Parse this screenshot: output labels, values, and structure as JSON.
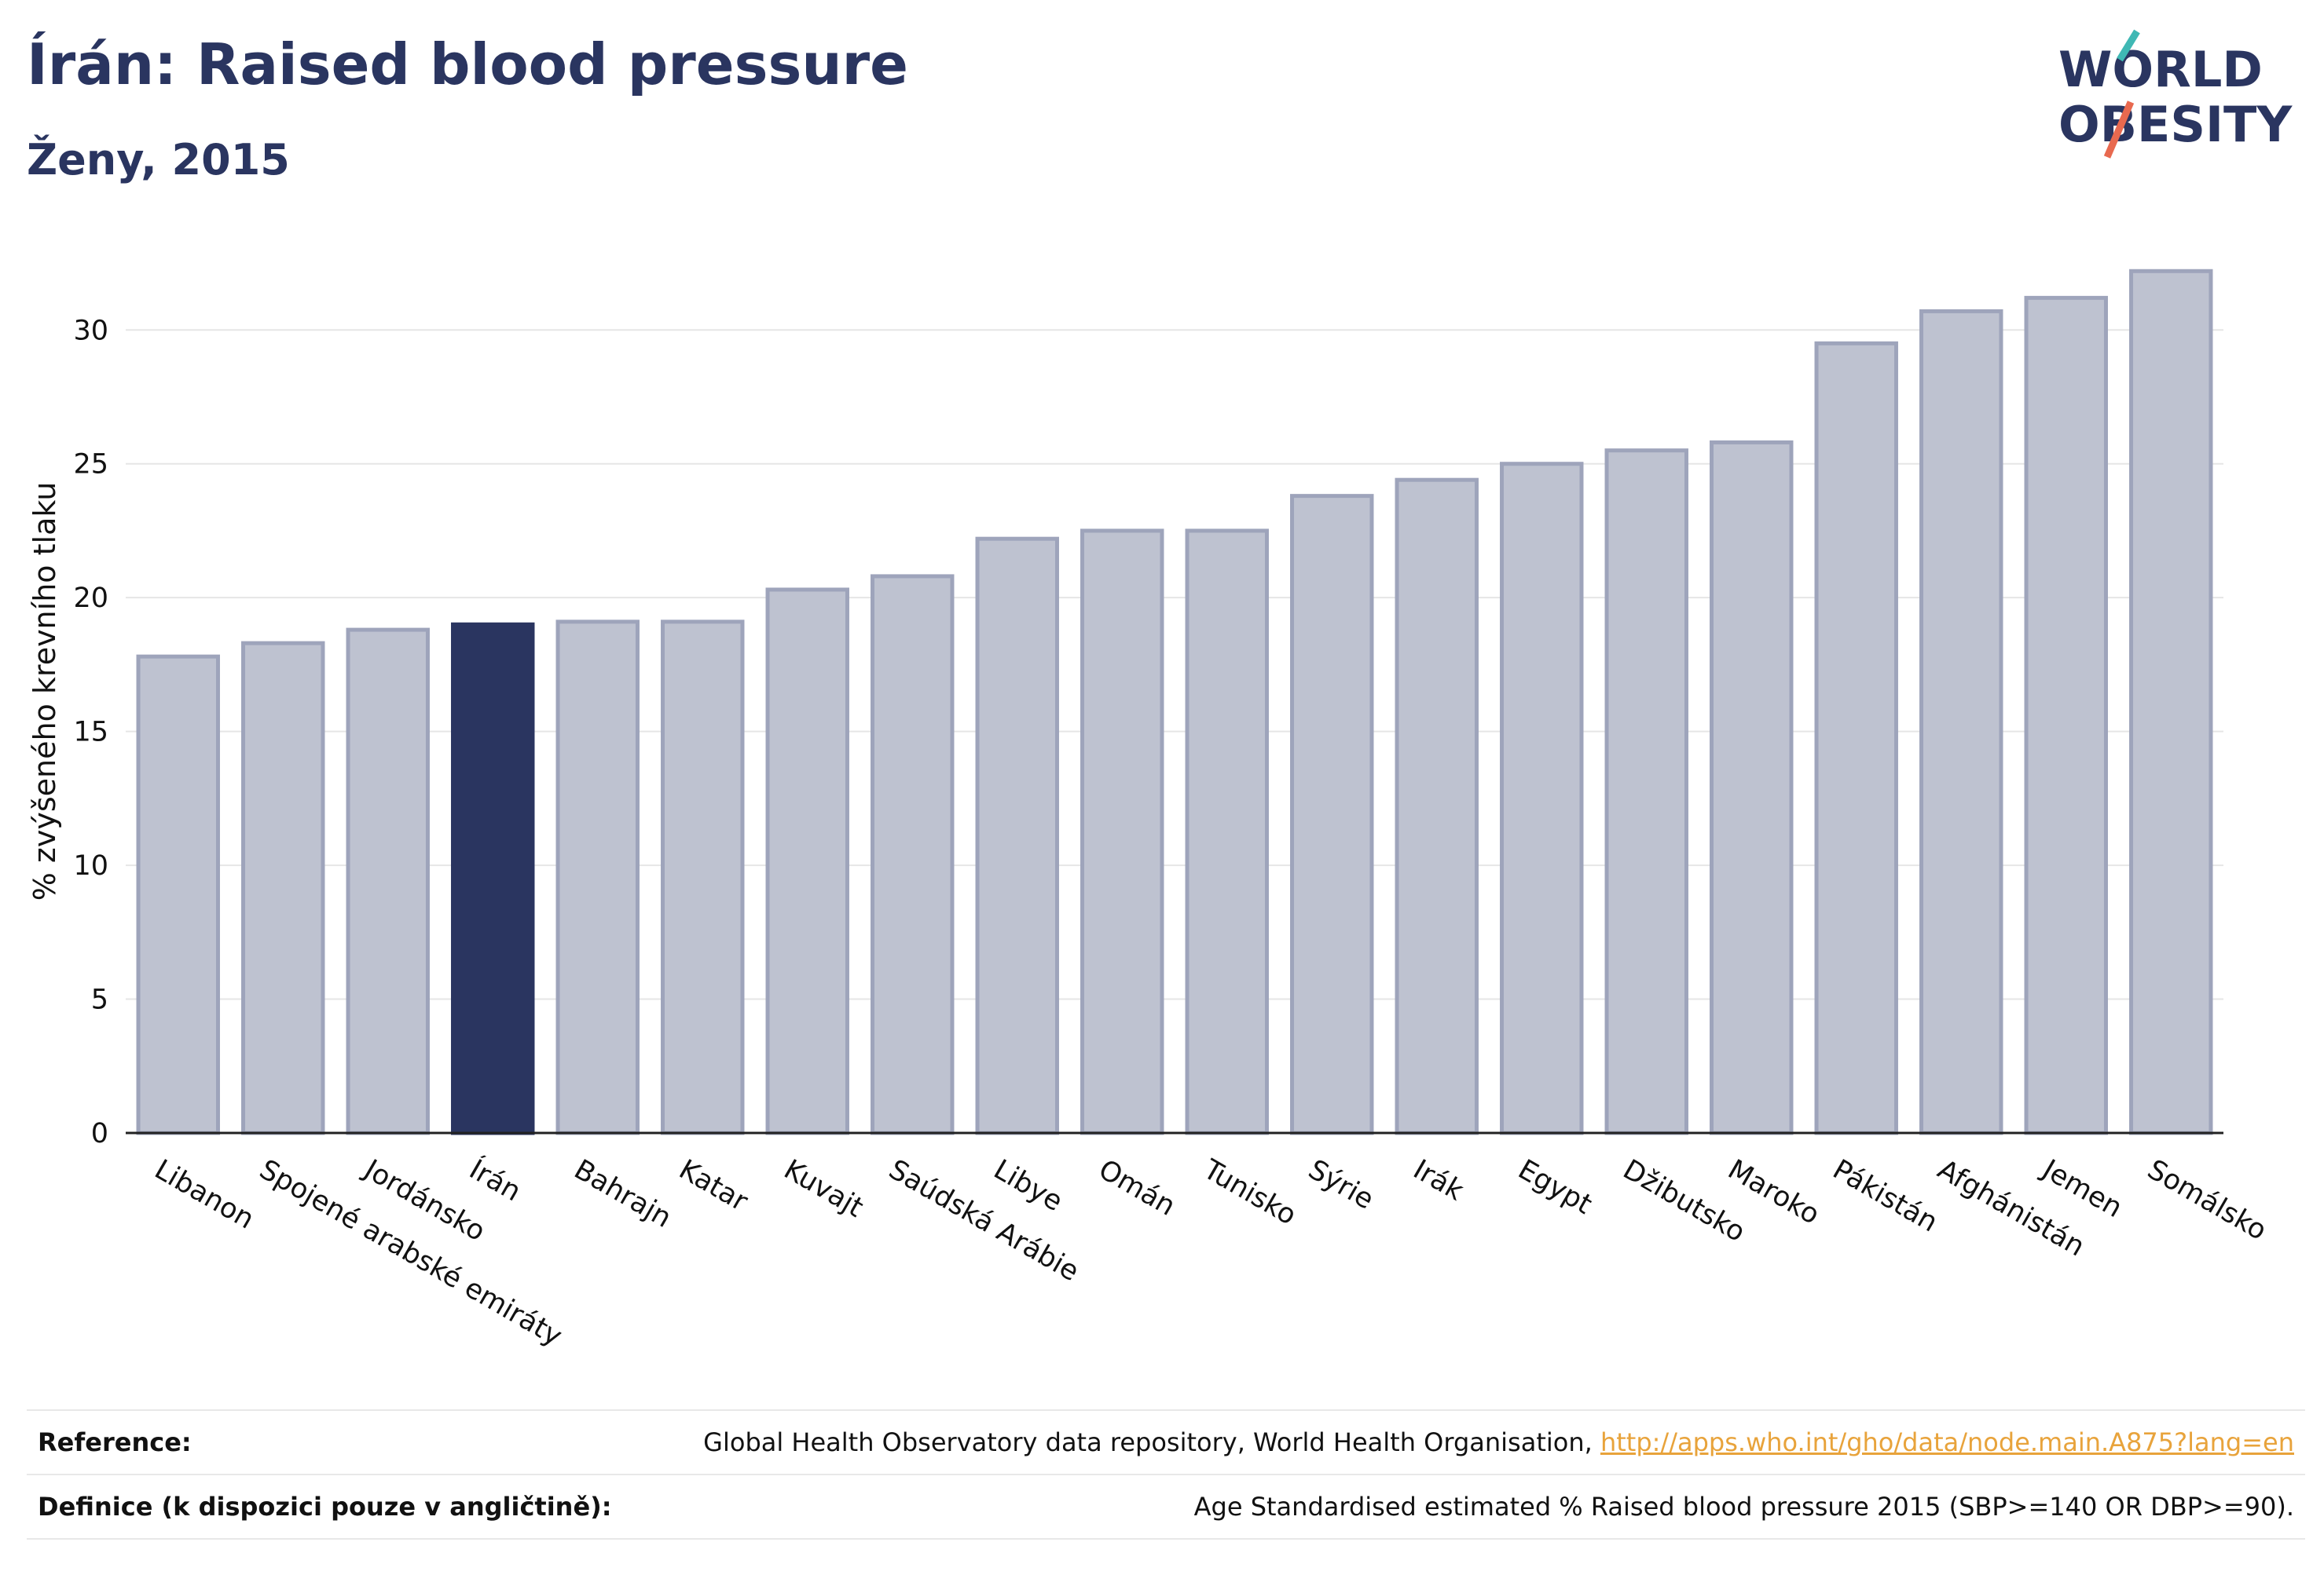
{
  "header": {
    "title": "Írán: Raised blood pressure",
    "subtitle": "Ženy, 2015"
  },
  "logo": {
    "line1": "WORLD",
    "line2": "OBESITY",
    "colors": [
      "#2a3560",
      "#e8694f",
      "#3fb8b4"
    ]
  },
  "chart_data": {
    "type": "bar",
    "ylabel": "% zvýšeného krevního tlaku",
    "ylim": [
      0,
      33
    ],
    "yticks": [
      0,
      5,
      10,
      15,
      20,
      25,
      30
    ],
    "grid": true,
    "highlight": "Írán",
    "colors": {
      "bar": "#bec2d0",
      "bar_edge": "#9ea4bb",
      "highlight": "#2a3560"
    },
    "categories": [
      "Libanon",
      "Spojené arabské emiráty",
      "Jordánsko",
      "Írán",
      "Bahrajn",
      "Katar",
      "Kuvajt",
      "Saúdská Arábie",
      "Libye",
      "Omán",
      "Tunisko",
      "Sýrie",
      "Irák",
      "Egypt",
      "Džibutsko",
      "Maroko",
      "Pákistán",
      "Afghánistán",
      "Jemen",
      "Somálsko"
    ],
    "values": [
      17.8,
      18.3,
      18.8,
      19.0,
      19.1,
      19.1,
      20.3,
      20.8,
      22.2,
      22.5,
      22.5,
      23.8,
      24.4,
      25.0,
      25.5,
      25.8,
      29.5,
      30.7,
      31.2,
      32.2
    ]
  },
  "footer": {
    "reference_label": "Reference:",
    "reference_text": "Global Health Observatory data repository, World Health Organisation, ",
    "reference_link": "http://apps.who.int/gho/data/node.main.A875?lang=en",
    "definition_label": "Definice (k dispozici pouze v angličtině):",
    "definition_text": "Age Standardised estimated % Raised blood pressure 2015 (SBP>=140 OR DBP>=90)."
  }
}
